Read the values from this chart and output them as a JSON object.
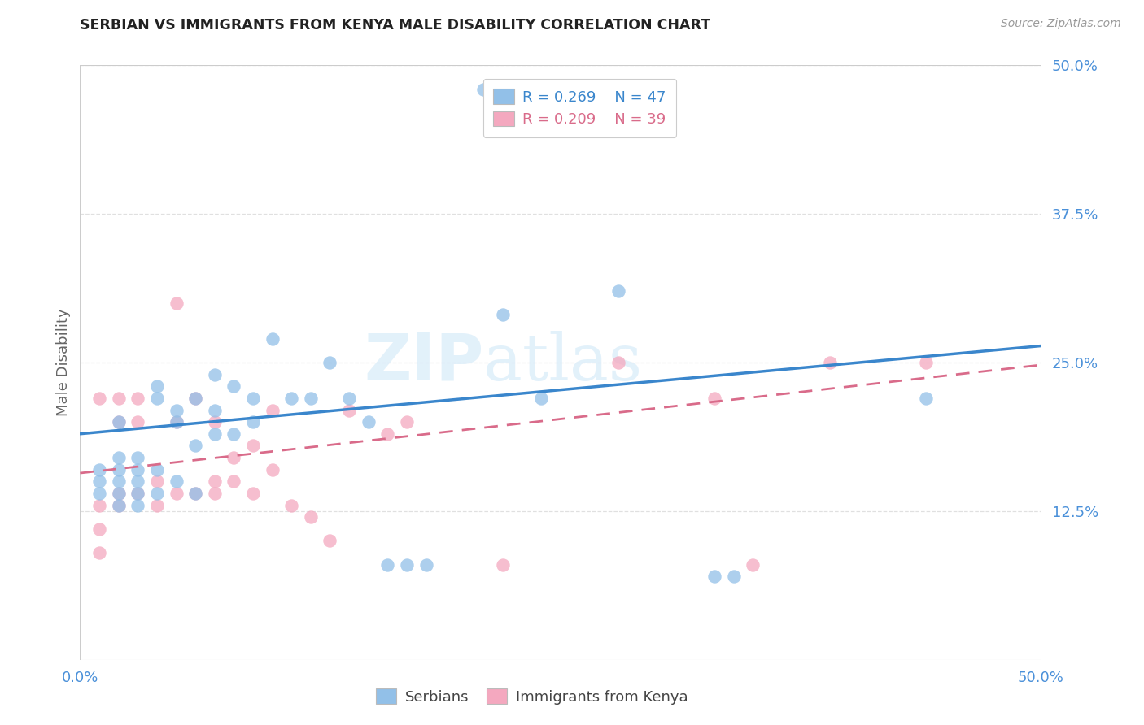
{
  "title": "SERBIAN VS IMMIGRANTS FROM KENYA MALE DISABILITY CORRELATION CHART",
  "source": "Source: ZipAtlas.com",
  "ylabel": "Male Disability",
  "xlim": [
    0.0,
    0.5
  ],
  "ylim": [
    0.0,
    0.5
  ],
  "xticks": [
    0.0,
    0.125,
    0.25,
    0.375,
    0.5
  ],
  "yticks": [
    0.0,
    0.125,
    0.25,
    0.375,
    0.5
  ],
  "xticklabels": [
    "0.0%",
    "",
    "",
    "",
    "50.0%"
  ],
  "yticklabels": [
    "",
    "12.5%",
    "25.0%",
    "37.5%",
    "50.0%"
  ],
  "watermark_zip": "ZIP",
  "watermark_atlas": "atlas",
  "serbian_color": "#92c0e8",
  "kenya_color": "#f4a8bf",
  "serbian_line_color": "#3a86cc",
  "kenya_line_color": "#d96b8a",
  "legend_serbian_R": "0.269",
  "legend_serbian_N": "47",
  "legend_kenya_R": "0.209",
  "legend_kenya_N": "39",
  "serbian_x": [
    0.01,
    0.01,
    0.01,
    0.02,
    0.02,
    0.02,
    0.02,
    0.02,
    0.02,
    0.03,
    0.03,
    0.03,
    0.03,
    0.03,
    0.04,
    0.04,
    0.04,
    0.04,
    0.05,
    0.05,
    0.05,
    0.06,
    0.06,
    0.06,
    0.07,
    0.07,
    0.07,
    0.08,
    0.08,
    0.09,
    0.09,
    0.1,
    0.11,
    0.12,
    0.13,
    0.14,
    0.15,
    0.16,
    0.17,
    0.18,
    0.21,
    0.22,
    0.24,
    0.28,
    0.33,
    0.34,
    0.44
  ],
  "serbian_y": [
    0.14,
    0.15,
    0.16,
    0.13,
    0.14,
    0.15,
    0.16,
    0.17,
    0.2,
    0.13,
    0.14,
    0.15,
    0.16,
    0.17,
    0.14,
    0.16,
    0.22,
    0.23,
    0.15,
    0.2,
    0.21,
    0.14,
    0.18,
    0.22,
    0.19,
    0.21,
    0.24,
    0.19,
    0.23,
    0.2,
    0.22,
    0.27,
    0.22,
    0.22,
    0.25,
    0.22,
    0.2,
    0.08,
    0.08,
    0.08,
    0.48,
    0.29,
    0.22,
    0.31,
    0.07,
    0.07,
    0.22
  ],
  "kenya_x": [
    0.01,
    0.01,
    0.01,
    0.01,
    0.02,
    0.02,
    0.02,
    0.02,
    0.03,
    0.03,
    0.03,
    0.04,
    0.04,
    0.05,
    0.05,
    0.05,
    0.06,
    0.06,
    0.07,
    0.07,
    0.07,
    0.08,
    0.08,
    0.09,
    0.09,
    0.1,
    0.1,
    0.11,
    0.12,
    0.13,
    0.14,
    0.16,
    0.17,
    0.22,
    0.28,
    0.33,
    0.35,
    0.39,
    0.44
  ],
  "kenya_y": [
    0.09,
    0.11,
    0.13,
    0.22,
    0.13,
    0.14,
    0.2,
    0.22,
    0.14,
    0.2,
    0.22,
    0.13,
    0.15,
    0.14,
    0.2,
    0.3,
    0.14,
    0.22,
    0.14,
    0.15,
    0.2,
    0.15,
    0.17,
    0.14,
    0.18,
    0.16,
    0.21,
    0.13,
    0.12,
    0.1,
    0.21,
    0.19,
    0.2,
    0.08,
    0.25,
    0.22,
    0.08,
    0.25,
    0.25
  ],
  "serbian_line_x0": 0.0,
  "serbian_line_y0": 0.19,
  "serbian_line_x1": 0.5,
  "serbian_line_y1": 0.264,
  "kenya_line_x0": 0.0,
  "kenya_line_y0": 0.157,
  "kenya_line_x1": 0.5,
  "kenya_line_y1": 0.248,
  "background_color": "#ffffff",
  "grid_color": "#e0e0e0"
}
